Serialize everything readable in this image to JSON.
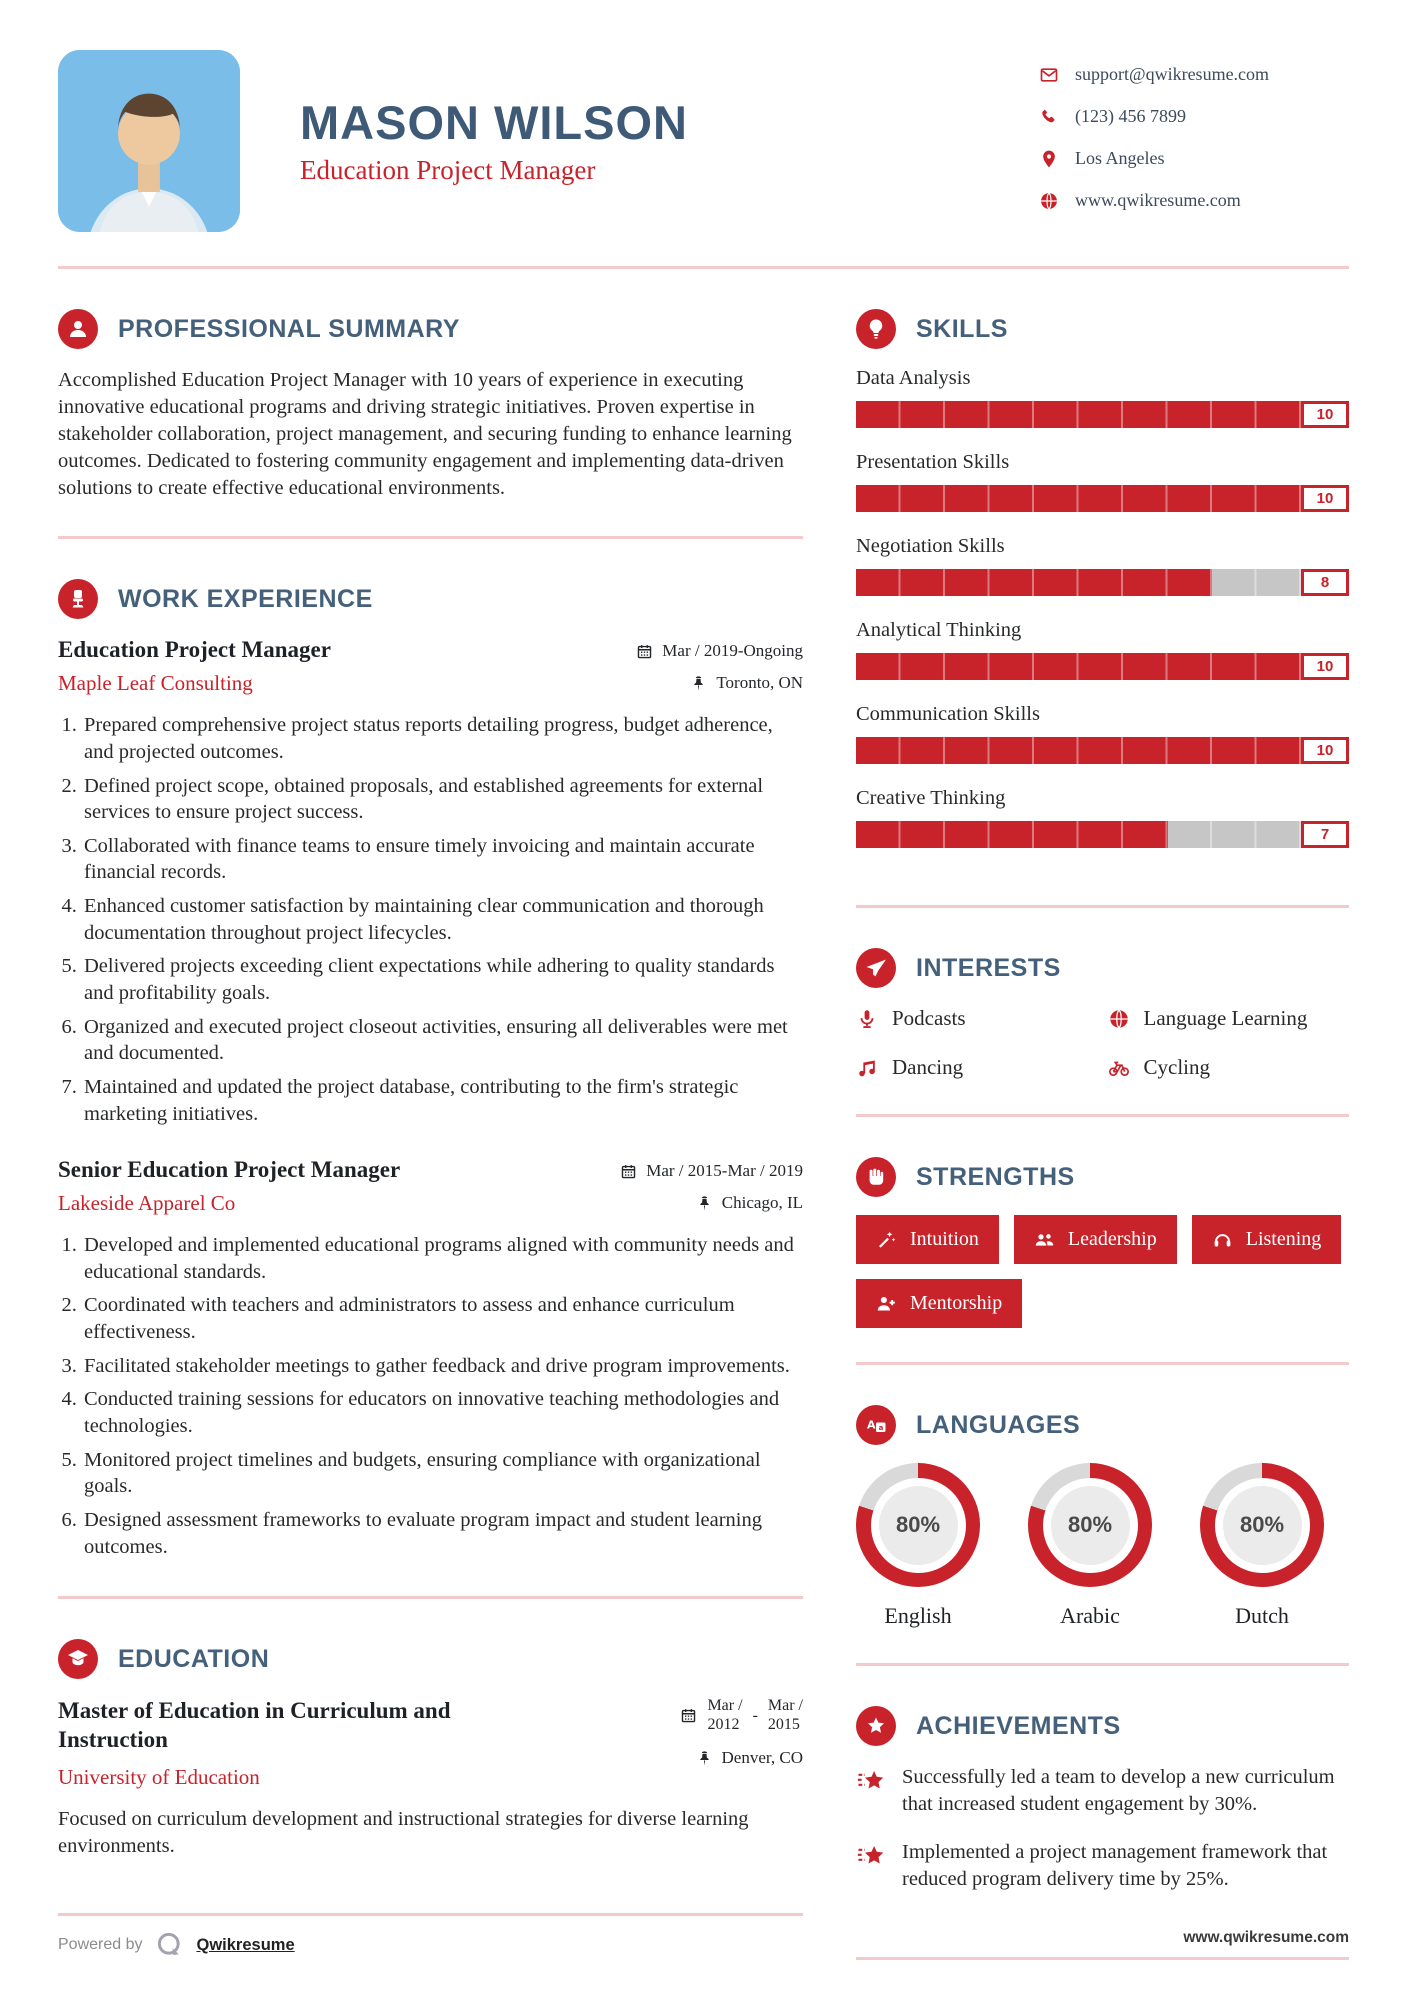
{
  "colors": {
    "accent": "#c8222a",
    "heading": "#44607a",
    "divider": "#f2caca",
    "bar_gray": "#c6c6c6"
  },
  "header": {
    "name": "MASON WILSON",
    "title": "Education Project Manager",
    "contact": [
      {
        "icon": "email-icon",
        "text": "support@qwikresume.com"
      },
      {
        "icon": "phone-icon",
        "text": "(123) 456 7899"
      },
      {
        "icon": "location-pin-icon",
        "text": "Los Angeles"
      },
      {
        "icon": "globe-icon",
        "text": "www.qwikresume.com"
      }
    ]
  },
  "summary": {
    "heading": "PROFESSIONAL SUMMARY",
    "text": "Accomplished Education Project Manager with 10 years of experience in executing innovative educational programs and driving strategic initiatives. Proven expertise in stakeholder collaboration, project management, and securing funding to enhance learning outcomes. Dedicated to fostering community engagement and implementing data-driven solutions to create effective educational environments."
  },
  "work": {
    "heading": "WORK EXPERIENCE",
    "jobs": [
      {
        "title": "Education Project Manager",
        "company": "Maple Leaf Consulting",
        "dates": "Mar / 2019-Ongoing",
        "location": "Toronto, ON",
        "bullets": [
          "Prepared comprehensive project status reports detailing progress, budget adherence, and projected outcomes.",
          "Defined project scope, obtained proposals, and established agreements for external services to ensure project success.",
          "Collaborated with finance teams to ensure timely invoicing and maintain accurate financial records.",
          "Enhanced customer satisfaction by maintaining clear communication and thorough documentation throughout project lifecycles.",
          "Delivered projects exceeding client expectations while adhering to quality standards and profitability goals.",
          "Organized and executed project closeout activities, ensuring all deliverables were met and documented.",
          "Maintained and updated the project database, contributing to the firm's strategic marketing initiatives."
        ]
      },
      {
        "title": "Senior Education Project Manager",
        "company": "Lakeside Apparel Co",
        "dates": "Mar / 2015-Mar / 2019",
        "location": "Chicago, IL",
        "bullets": [
          "Developed and implemented educational programs aligned with community needs and educational standards.",
          "Coordinated with teachers and administrators to assess and enhance curriculum effectiveness.",
          "Facilitated stakeholder meetings to gather feedback and drive program improvements.",
          "Conducted training sessions for educators on innovative teaching methodologies and technologies.",
          "Monitored project timelines and budgets, ensuring compliance with organizational goals.",
          "Designed assessment frameworks to evaluate program impact and student learning outcomes."
        ]
      }
    ]
  },
  "education": {
    "heading": "EDUCATION",
    "degree": "Master of Education in Curriculum and Instruction",
    "school": "University of Education",
    "date": {
      "start_top": "Mar /",
      "start_bottom": "2012",
      "separator": "-",
      "end_top": "Mar /",
      "end_bottom": "2015"
    },
    "location": "Denver, CO",
    "description": "Focused on curriculum development and instructional strategies for diverse learning environments."
  },
  "skills": {
    "heading": "SKILLS",
    "max": 10,
    "items": [
      {
        "name": "Data Analysis",
        "score": 10
      },
      {
        "name": "Presentation Skills",
        "score": 10
      },
      {
        "name": "Negotiation Skills",
        "score": 8
      },
      {
        "name": "Analytical Thinking",
        "score": 10
      },
      {
        "name": "Communication Skills",
        "score": 10
      },
      {
        "name": "Creative Thinking",
        "score": 7
      }
    ]
  },
  "interests": {
    "heading": "INTERESTS",
    "items": [
      {
        "icon": "microphone-icon",
        "label": "Podcasts"
      },
      {
        "icon": "globe-icon",
        "label": "Language Learning"
      },
      {
        "icon": "music-note-icon",
        "label": "Dancing"
      },
      {
        "icon": "bicycle-icon",
        "label": "Cycling"
      }
    ]
  },
  "strengths": {
    "heading": "STRENGTHS",
    "items": [
      {
        "icon": "magic-wand-icon",
        "label": "Intuition"
      },
      {
        "icon": "team-icon",
        "label": "Leadership"
      },
      {
        "icon": "headphones-icon",
        "label": "Listening"
      },
      {
        "icon": "user-plus-icon",
        "label": "Mentorship"
      }
    ]
  },
  "languages": {
    "heading": "LANGUAGES",
    "items": [
      {
        "name": "English",
        "percent": 80
      },
      {
        "name": "Arabic",
        "percent": 80
      },
      {
        "name": "Dutch",
        "percent": 80
      }
    ]
  },
  "achievements": {
    "heading": "ACHIEVEMENTS",
    "items": [
      "Successfully led a team to develop a new curriculum that increased student engagement by 30%.",
      "Implemented a project management framework that reduced program delivery time by 25%."
    ]
  },
  "footer": {
    "powered_by": "Powered by",
    "brand": "Qwikresume",
    "website": "www.qwikresume.com"
  }
}
